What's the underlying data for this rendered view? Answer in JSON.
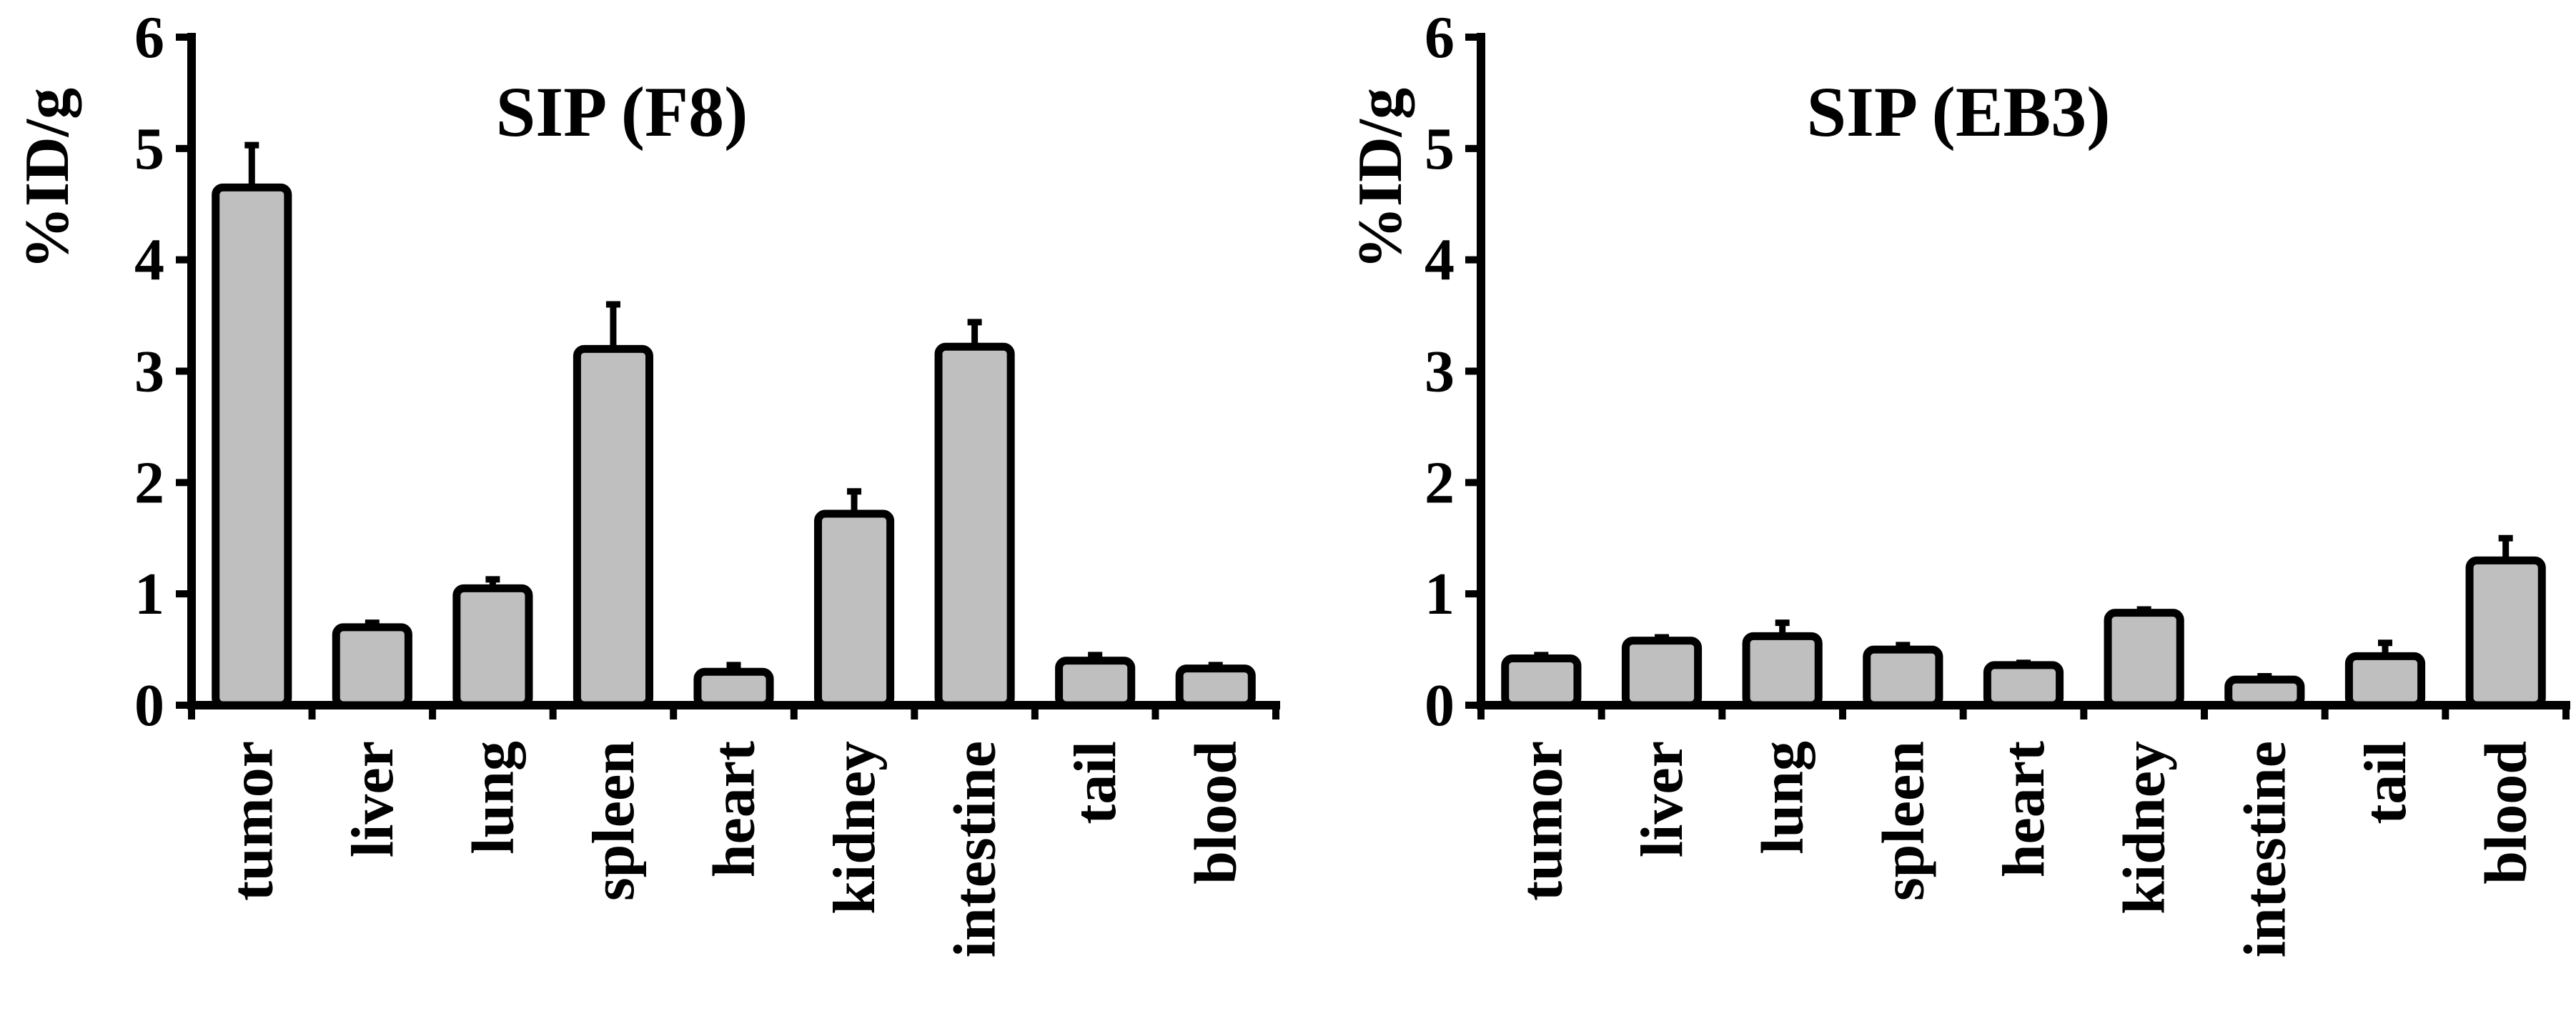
{
  "chart_data": [
    {
      "type": "bar",
      "title": "SIP (F8)",
      "xlabel": "",
      "ylabel": "%ID/g",
      "ylim": [
        0,
        6
      ],
      "yticks": [
        "0",
        "1",
        "2",
        "3",
        "4",
        "5",
        "6"
      ],
      "categories": [
        "tumor",
        "liver",
        "lung",
        "spleen",
        "heart",
        "kidney",
        "intestine",
        "tail",
        "blood"
      ],
      "values": [
        4.65,
        0.7,
        1.05,
        3.2,
        0.3,
        1.72,
        3.22,
        0.4,
        0.33
      ],
      "errors": [
        0.38,
        0.04,
        0.08,
        0.4,
        0.06,
        0.2,
        0.22,
        0.05,
        0.03
      ],
      "bar_color": "#bfbfbf",
      "grid": false
    },
    {
      "type": "bar",
      "title": "SIP (EB3)",
      "xlabel": "",
      "ylabel": "%ID/g",
      "ylim": [
        0,
        6
      ],
      "yticks": [
        "0",
        "1",
        "2",
        "3",
        "4",
        "5",
        "6"
      ],
      "categories": [
        "tumor",
        "liver",
        "lung",
        "spleen",
        "heart",
        "kidney",
        "intestine",
        "tail",
        "blood"
      ],
      "values": [
        0.42,
        0.58,
        0.62,
        0.5,
        0.36,
        0.83,
        0.23,
        0.44,
        1.3
      ],
      "errors": [
        0.03,
        0.03,
        0.12,
        0.04,
        0.02,
        0.03,
        0.03,
        0.12,
        0.2
      ],
      "bar_color": "#bfbfbf",
      "grid": false
    }
  ]
}
